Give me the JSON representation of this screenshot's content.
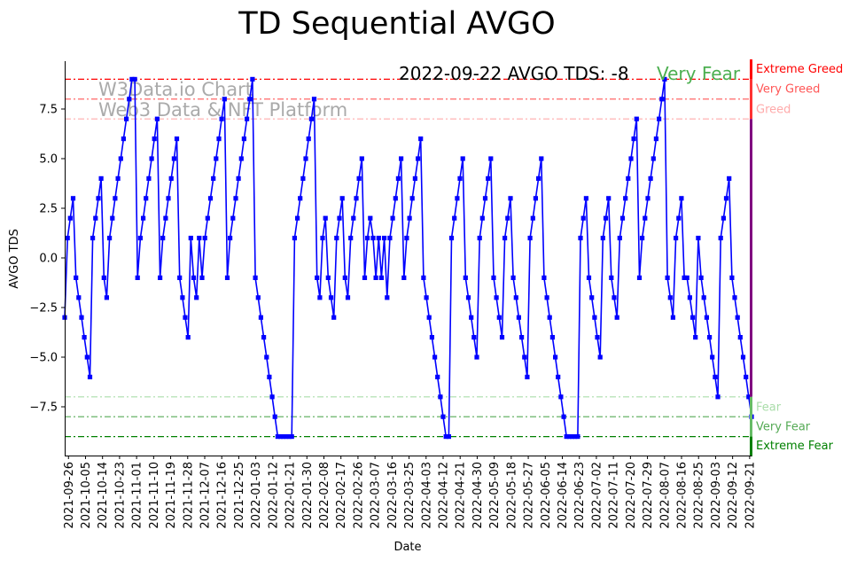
{
  "chart_data": {
    "type": "line",
    "title": "TD Sequential AVGO",
    "xlabel": "Date",
    "ylabel": "AVGO TDS",
    "ylim": [
      -10,
      10
    ],
    "yticks": [
      -7.5,
      -5.0,
      -2.5,
      0.0,
      2.5,
      5.0,
      7.5
    ],
    "ytick_labels": [
      "−7.5",
      "−5.0",
      "−2.5",
      "0.0",
      "2.5",
      "5.0",
      "7.5"
    ],
    "grid": false,
    "start_date": "2021-09-24",
    "end_date": "2022-09-22",
    "tick_dates": [
      "2021-09-26",
      "2021-10-05",
      "2021-10-14",
      "2021-10-23",
      "2021-11-01",
      "2021-11-10",
      "2021-11-19",
      "2021-11-28",
      "2021-12-07",
      "2021-12-16",
      "2021-12-25",
      "2022-01-03",
      "2022-01-12",
      "2022-01-21",
      "2022-01-30",
      "2022-02-08",
      "2022-02-17",
      "2022-02-26",
      "2022-03-07",
      "2022-03-16",
      "2022-03-25",
      "2022-04-03",
      "2022-04-12",
      "2022-04-21",
      "2022-04-30",
      "2022-05-09",
      "2022-05-18",
      "2022-05-27",
      "2022-06-05",
      "2022-06-14",
      "2022-06-23",
      "2022-07-02",
      "2022-07-11",
      "2022-07-20",
      "2022-07-29",
      "2022-08-07",
      "2022-08-16",
      "2022-08-25",
      "2022-09-03",
      "2022-09-12",
      "2022-09-21"
    ],
    "series": [
      {
        "name": "AVGO TDS",
        "color": "#0000ff",
        "marker": "square",
        "values": [
          -3,
          1,
          2,
          3,
          -1,
          -2,
          -3,
          -4,
          -5,
          -6,
          1,
          2,
          3,
          4,
          -1,
          -2,
          1,
          2,
          3,
          4,
          5,
          6,
          7,
          8,
          9,
          9,
          -1,
          1,
          2,
          3,
          4,
          5,
          6,
          7,
          -1,
          1,
          2,
          3,
          4,
          5,
          6,
          -1,
          -2,
          -3,
          -4,
          1,
          -1,
          -2,
          1,
          -1,
          1,
          2,
          3,
          4,
          5,
          6,
          7,
          8,
          -1,
          1,
          2,
          3,
          4,
          5,
          6,
          7,
          8,
          9,
          -1,
          -2,
          -3,
          -4,
          -5,
          -6,
          -7,
          -8,
          -9,
          -9,
          -9,
          -9,
          -9,
          -9,
          1,
          2,
          3,
          4,
          5,
          6,
          7,
          8,
          -1,
          -2,
          1,
          2,
          -1,
          -2,
          -3,
          1,
          2,
          3,
          -1,
          -2,
          1,
          2,
          3,
          4,
          5,
          -1,
          1,
          2,
          1,
          -1,
          1,
          -1,
          1,
          -2,
          1,
          2,
          3,
          4,
          5,
          -1,
          1,
          2,
          3,
          4,
          5,
          6,
          -1,
          -2,
          -3,
          -4,
          -5,
          -6,
          -7,
          -8,
          -9,
          -9,
          1,
          2,
          3,
          4,
          5,
          -1,
          -2,
          -3,
          -4,
          -5,
          1,
          2,
          3,
          4,
          5,
          -1,
          -2,
          -3,
          -4,
          1,
          2,
          3,
          -1,
          -2,
          -3,
          -4,
          -5,
          -6,
          1,
          2,
          3,
          4,
          5,
          -1,
          -2,
          -3,
          -4,
          -5,
          -6,
          -7,
          -8,
          -9,
          -9,
          -9,
          -9,
          -9,
          1,
          2,
          3,
          -1,
          -2,
          -3,
          -4,
          -5,
          1,
          2,
          3,
          -1,
          -2,
          -3,
          1,
          2,
          3,
          4,
          5,
          6,
          7,
          -1,
          1,
          2,
          3,
          4,
          5,
          6,
          7,
          8,
          9,
          -1,
          -2,
          -3,
          1,
          2,
          3,
          -1,
          -1,
          -2,
          -3,
          -4,
          1,
          -1,
          -2,
          -3,
          -4,
          -5,
          -6,
          -7,
          1,
          2,
          3,
          4,
          -1,
          -2,
          -3,
          -4,
          -5,
          -6,
          -7,
          -8
        ]
      }
    ],
    "levels": [
      {
        "name": "Extreme Greed",
        "value": 9,
        "color": "#ff0000"
      },
      {
        "name": "Very Greed",
        "value": 8,
        "color": "#ff5555"
      },
      {
        "name": "Greed",
        "value": 7,
        "color": "#ffaaaa"
      },
      {
        "name": "Fear",
        "value": -7,
        "color": "#aaddaa"
      },
      {
        "name": "Very Fear",
        "value": -8,
        "color": "#55aa55"
      },
      {
        "name": "Extreme Fear",
        "value": -9,
        "color": "#008000"
      }
    ],
    "annotation": {
      "text": "2022-09-22 AVGO TDS: -8",
      "status": "Very Fear",
      "status_color": "#4caf50"
    },
    "watermark": [
      "W3Data.io Chart",
      "Web3 Data & NFT Platform"
    ]
  }
}
